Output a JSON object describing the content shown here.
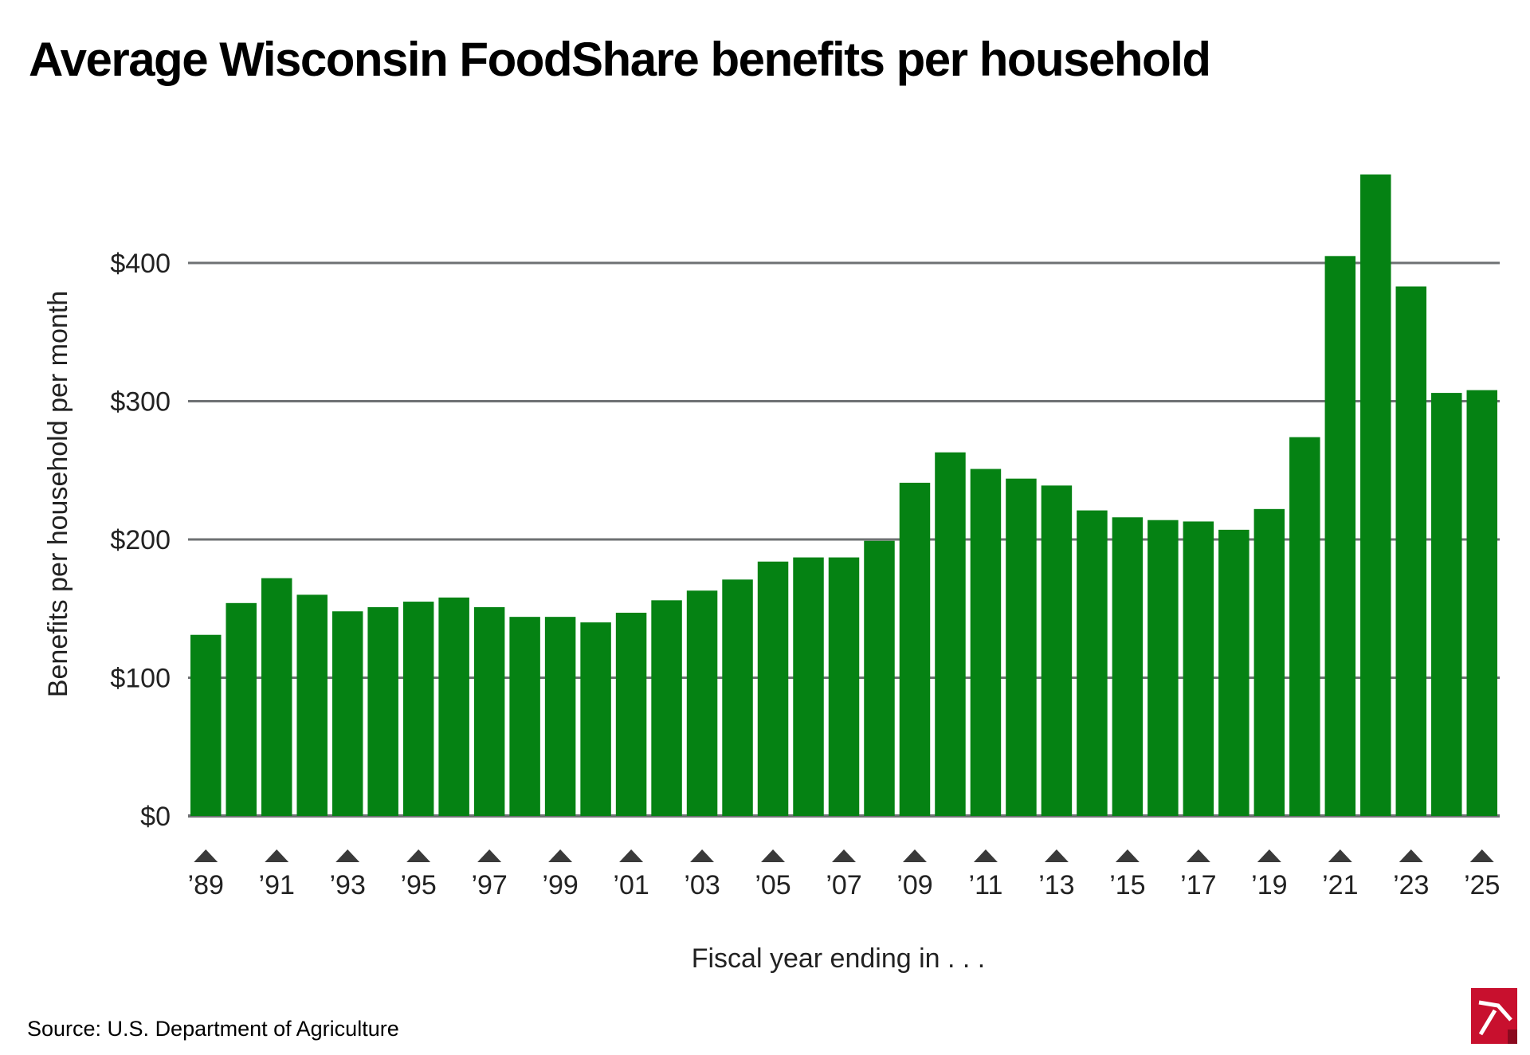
{
  "chart_data": {
    "type": "bar",
    "title": "Average Wisconsin FoodShare benefits per household",
    "xlabel": "Fiscal year ending in . . .",
    "ylabel": "Benefits per household per month",
    "source": "Source: U.S. Department of Agriculture",
    "ylim": [
      0,
      460
    ],
    "yticks": [
      0,
      100,
      200,
      300,
      400
    ],
    "ytick_labels": [
      "$0",
      "$100",
      "$200",
      "$300",
      "$400"
    ],
    "grid": true,
    "bar_color": "#058213",
    "grid_color": "#6e7173",
    "marker_color": "#3a3a3a",
    "categories": [
      "1989",
      "1990",
      "1991",
      "1992",
      "1993",
      "1994",
      "1995",
      "1996",
      "1997",
      "1998",
      "1999",
      "2000",
      "2001",
      "2002",
      "2003",
      "2004",
      "2005",
      "2006",
      "2007",
      "2008",
      "2009",
      "2010",
      "2011",
      "2012",
      "2013",
      "2014",
      "2015",
      "2016",
      "2017",
      "2018",
      "2019",
      "2020",
      "2021",
      "2022",
      "2023",
      "2024",
      "2025"
    ],
    "xtick_labels": [
      "’89",
      "",
      "’91",
      "",
      "’93",
      "",
      "’95",
      "",
      "’97",
      "",
      "’99",
      "",
      "’01",
      "",
      "’03",
      "",
      "’05",
      "",
      "’07",
      "",
      "’09",
      "",
      "’11",
      "",
      "’13",
      "",
      "’15",
      "",
      "’17",
      "",
      "’19",
      "",
      "’21",
      "",
      "’23",
      "",
      "’25"
    ],
    "values": [
      131,
      154,
      172,
      160,
      148,
      151,
      155,
      158,
      151,
      144,
      144,
      140,
      147,
      156,
      163,
      171,
      184,
      187,
      187,
      199,
      241,
      263,
      251,
      244,
      239,
      221,
      216,
      214,
      213,
      207,
      222,
      274,
      405,
      464,
      383,
      306,
      308
    ]
  },
  "logo": {
    "name": "Wisconsin Policy Forum",
    "color": "#c8102e"
  }
}
